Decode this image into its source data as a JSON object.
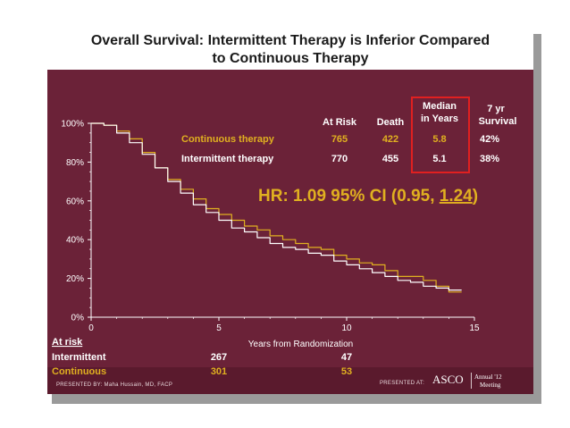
{
  "title_line1": "Overall Survival: Intermittent Therapy is Inferior Compared",
  "title_line2": "to Continuous Therapy",
  "table": {
    "headers": {
      "at_risk": "At Risk",
      "death": "Death",
      "median_l1": "Median",
      "median_l2": "in Years",
      "survival_l1": "7 yr",
      "survival_l2": "Survival"
    },
    "rows": [
      {
        "name": "Continuous therapy",
        "at_risk": "765",
        "death": "422",
        "median": "5.8",
        "survival": "42%"
      },
      {
        "name": "Intermittent therapy",
        "at_risk": "770",
        "death": "455",
        "median": "5.1",
        "survival": "38%"
      }
    ]
  },
  "hr_text": "HR: 1.09 95% CI (0.95, ",
  "hr_upper": "1.24",
  "hr_close": ")",
  "at_risk_table": {
    "label": "At risk",
    "rows": [
      {
        "name": "Intermittent",
        "values": [
          "267",
          "47"
        ]
      },
      {
        "name": "Continuous",
        "values": [
          "301",
          "53"
        ]
      }
    ]
  },
  "presented_by": "PRESENTED BY:   Maha Hussain, MD, FACP",
  "presented_at": "PRESENTED AT:",
  "asco": "ASCO",
  "annual_l1": "Annual '12",
  "annual_l2": "Meeting",
  "colors": {
    "background": "#6b2238",
    "continuous": "#e0b020",
    "intermittent": "#ffffff",
    "highlight_box": "#e02020"
  },
  "chart_data": {
    "type": "line",
    "title": "Overall Survival: Intermittent Therapy is Inferior Compared to Continuous Therapy",
    "xlabel": "Years from Randomization",
    "ylabel": "",
    "xlim": [
      0,
      15
    ],
    "ylim": [
      0,
      100
    ],
    "x_ticks": [
      "0",
      "5",
      "10",
      "15"
    ],
    "y_ticks": [
      "0%",
      "20%",
      "40%",
      "60%",
      "80%",
      "100%"
    ],
    "series": [
      {
        "name": "Continuous therapy",
        "x": [
          0,
          0.5,
          1,
          1.5,
          2,
          2.5,
          3,
          3.5,
          4,
          4.5,
          5,
          5.5,
          6,
          6.5,
          7,
          7.5,
          8,
          8.5,
          9,
          9.5,
          10,
          10.5,
          11,
          11.5,
          12,
          12.5,
          13,
          13.5,
          14,
          14.5
        ],
        "y": [
          100,
          99,
          96,
          92,
          85,
          77,
          71,
          66,
          61,
          56,
          53,
          50,
          47,
          45,
          42,
          40,
          38,
          36,
          35,
          32,
          30,
          28,
          27,
          24,
          21,
          21,
          19,
          16,
          13,
          13
        ]
      },
      {
        "name": "Intermittent therapy",
        "x": [
          0,
          0.5,
          1,
          1.5,
          2,
          2.5,
          3,
          3.5,
          4,
          4.5,
          5,
          5.5,
          6,
          6.5,
          7,
          7.5,
          8,
          8.5,
          9,
          9.5,
          10,
          10.5,
          11,
          11.5,
          12,
          12.5,
          13,
          13.5,
          14,
          14.5
        ],
        "y": [
          100,
          99,
          95,
          90,
          84,
          77,
          70,
          64,
          58,
          54,
          50,
          46,
          44,
          41,
          38,
          36,
          35,
          33,
          32,
          29,
          27,
          25,
          23,
          21,
          19,
          18,
          16,
          15,
          14,
          14
        ]
      }
    ]
  }
}
